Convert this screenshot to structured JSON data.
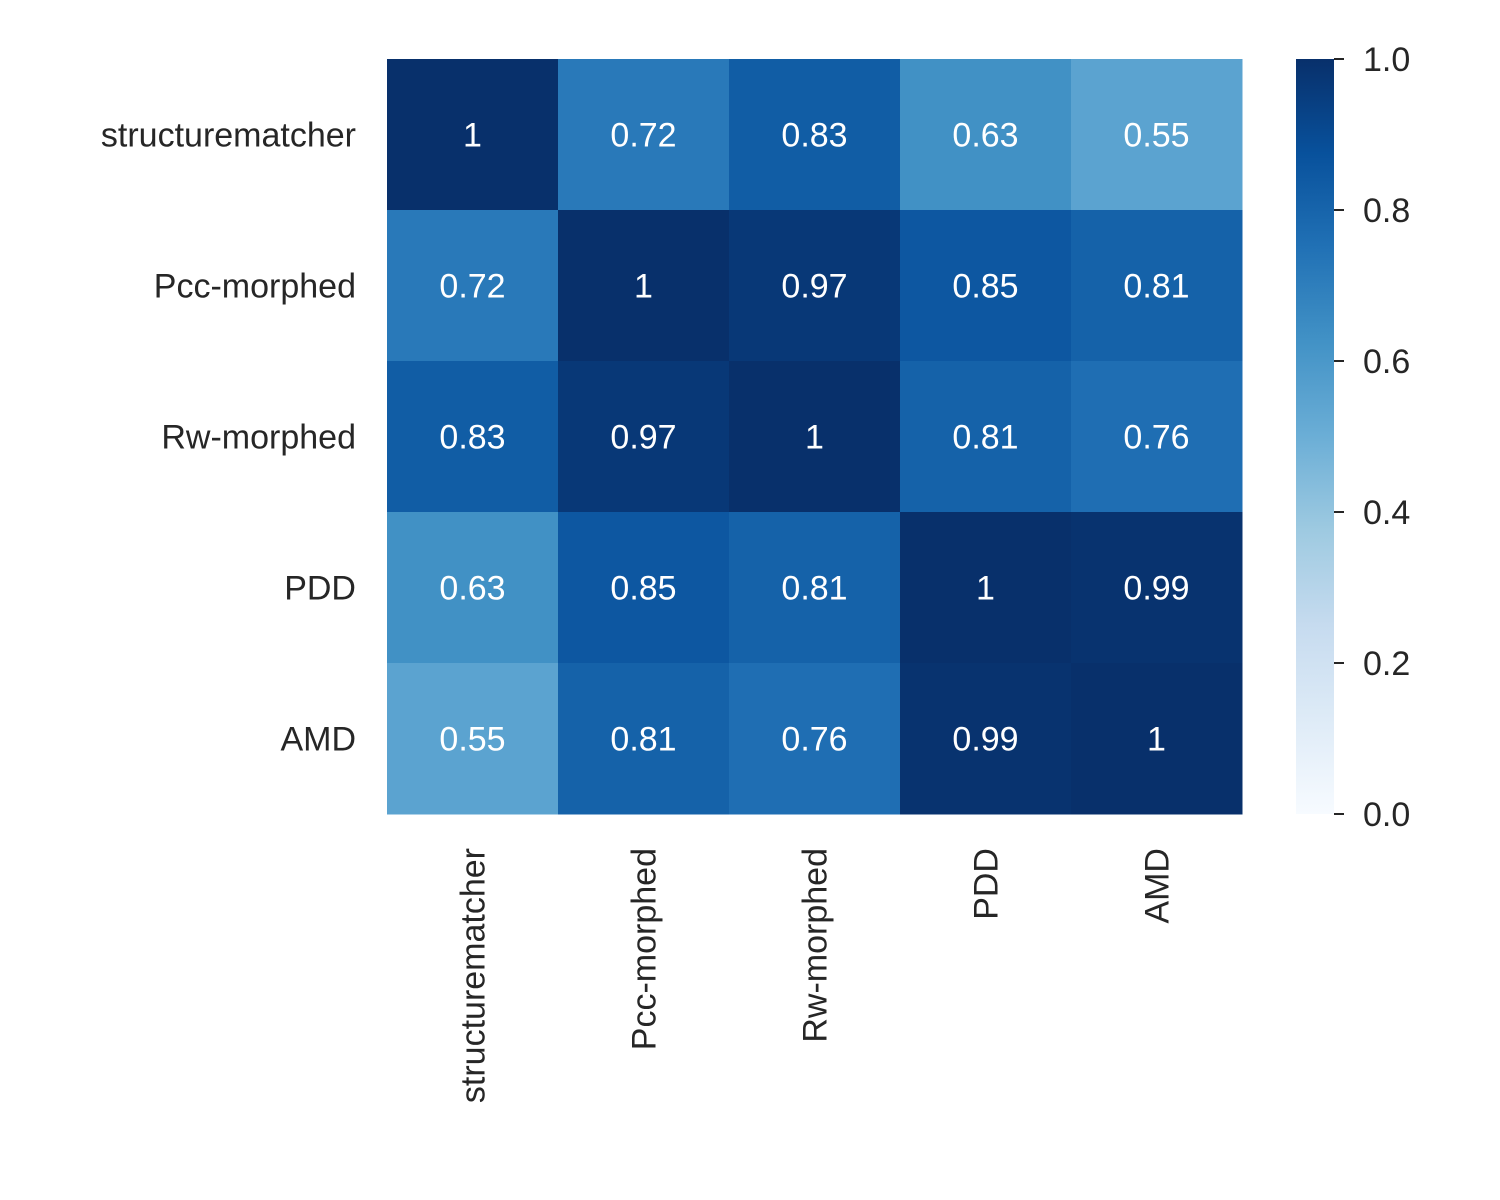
{
  "chart_data": {
    "type": "heatmap",
    "title": "",
    "xlabel": "",
    "ylabel": "",
    "x_labels": [
      "structurematcher",
      "Pcc-morphed",
      "Rw-morphed",
      "PDD",
      "AMD"
    ],
    "y_labels": [
      "structurematcher",
      "Pcc-morphed",
      "Rw-morphed",
      "PDD",
      "AMD"
    ],
    "values": [
      [
        1,
        0.72,
        0.83,
        0.63,
        0.55
      ],
      [
        0.72,
        1,
        0.97,
        0.85,
        0.81
      ],
      [
        0.83,
        0.97,
        1,
        0.81,
        0.76
      ],
      [
        0.63,
        0.85,
        0.81,
        1,
        0.99
      ],
      [
        0.55,
        0.81,
        0.76,
        0.99,
        1
      ]
    ],
    "annotations": [
      [
        "1",
        "0.72",
        "0.83",
        "0.63",
        "0.55"
      ],
      [
        "0.72",
        "1",
        "0.97",
        "0.85",
        "0.81"
      ],
      [
        "0.83",
        "0.97",
        "1",
        "0.81",
        "0.76"
      ],
      [
        "0.63",
        "0.85",
        "0.81",
        "1",
        "0.99"
      ],
      [
        "0.55",
        "0.81",
        "0.76",
        "0.99",
        "1"
      ]
    ],
    "colormap": "Blues",
    "colormap_stops": [
      "#f7fbff",
      "#deebf7",
      "#c6dbef",
      "#9ecae1",
      "#6baed6",
      "#4292c6",
      "#2171b5",
      "#08519c",
      "#08306b"
    ],
    "value_range": [
      0,
      1
    ],
    "colorbar": {
      "ticks": [
        0.0,
        0.2,
        0.4,
        0.6,
        0.8,
        1.0
      ],
      "tick_labels": [
        "0.0",
        "0.2",
        "0.4",
        "0.6",
        "0.8",
        "1.0"
      ]
    },
    "x_tick_rotation": "vertical",
    "annotation_color": "#ffffff",
    "grid": false
  }
}
